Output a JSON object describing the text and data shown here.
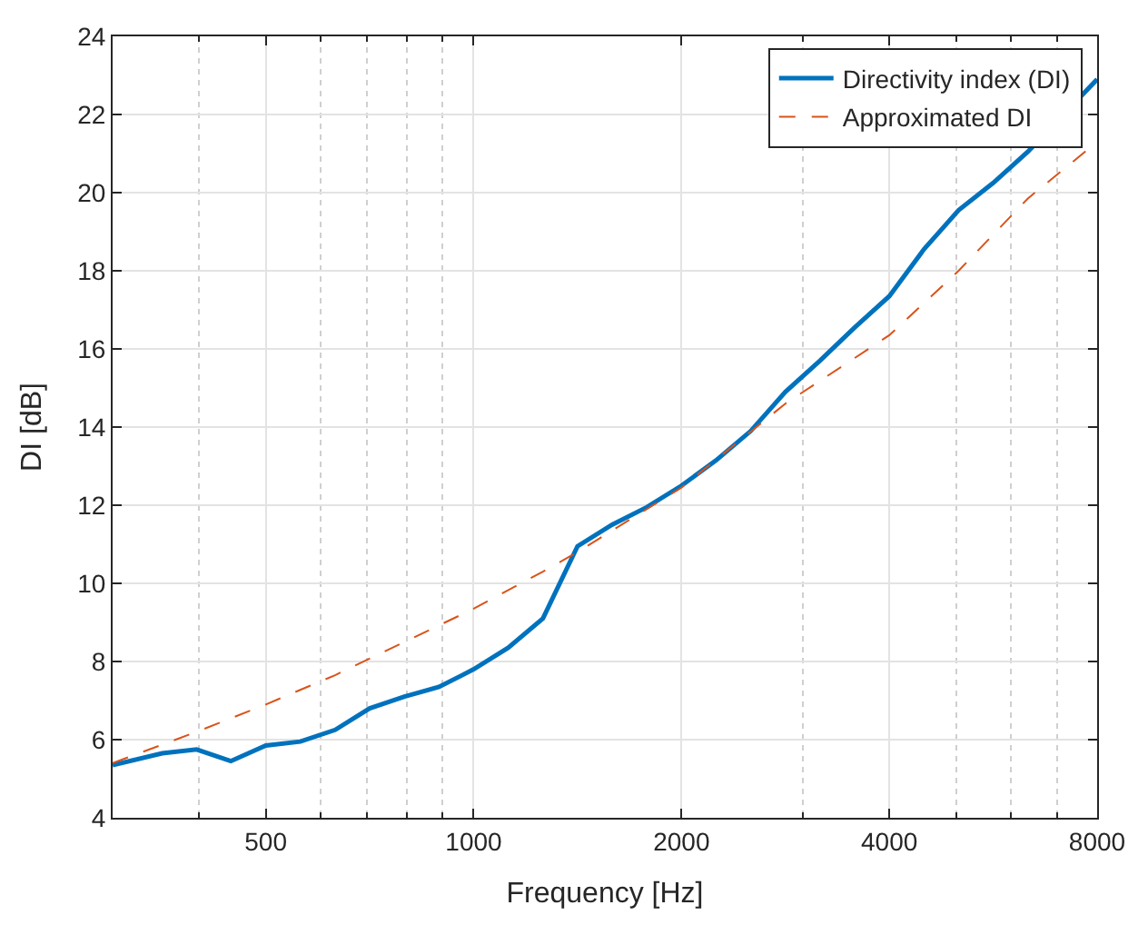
{
  "chart_data": {
    "type": "line",
    "xlabel": "Frequency [Hz]",
    "ylabel": "DI [dB]",
    "log": "x",
    "grid": true,
    "legend": "top right",
    "xlim": [
      300,
      8000
    ],
    "xticks": [
      {
        "value": 400,
        "label": null
      },
      500,
      {
        "value": 600,
        "label": null
      },
      {
        "value": 700,
        "label": null
      },
      {
        "value": 800,
        "label": null
      },
      {
        "value": 900,
        "label": null
      },
      1000,
      2000,
      {
        "value": 3000,
        "label": null
      },
      4000,
      {
        "value": 5000,
        "label": null
      },
      {
        "value": 6000,
        "label": null
      },
      {
        "value": 7000,
        "label": null
      },
      8000
    ],
    "ylim": [
      4,
      24
    ],
    "yticks": [
      4,
      6,
      8,
      10,
      12,
      14,
      16,
      18,
      20,
      22,
      24
    ],
    "series": [
      {
        "name": "Directivity index (DI)",
        "color": "#0072bd",
        "line_style": "solid",
        "x": [
          300,
          354,
          397,
          445,
          500,
          561,
          630,
          707,
          794,
          891,
          1000,
          1122,
          1260,
          1414,
          1587,
          1782,
          2000,
          2245,
          2520,
          2828,
          3175,
          3564,
          4000,
          4490,
          5040,
          5657,
          6350,
          7127,
          8000
        ],
        "values": [
          5.35,
          5.65,
          5.75,
          5.45,
          5.85,
          5.95,
          6.25,
          6.8,
          7.1,
          7.35,
          7.8,
          8.35,
          9.1,
          10.95,
          11.5,
          11.95,
          12.5,
          13.15,
          13.9,
          14.9,
          15.7,
          16.55,
          17.35,
          18.55,
          19.55,
          20.25,
          21.05,
          null,
          22.9
        ]
      },
      {
        "name": "Approximated DI",
        "color": "#d95319",
        "line_style": "dashed",
        "x": [
          300,
          397,
          500,
          630,
          794,
          1000,
          1260,
          1414,
          2000,
          2828,
          4000,
          5040,
          6350,
          8000
        ],
        "values": [
          5.4,
          6.2,
          6.9,
          7.65,
          8.5,
          9.35,
          10.3,
          10.8,
          12.45,
          14.6,
          16.35,
          18.0,
          19.85,
          21.3
        ]
      }
    ]
  }
}
